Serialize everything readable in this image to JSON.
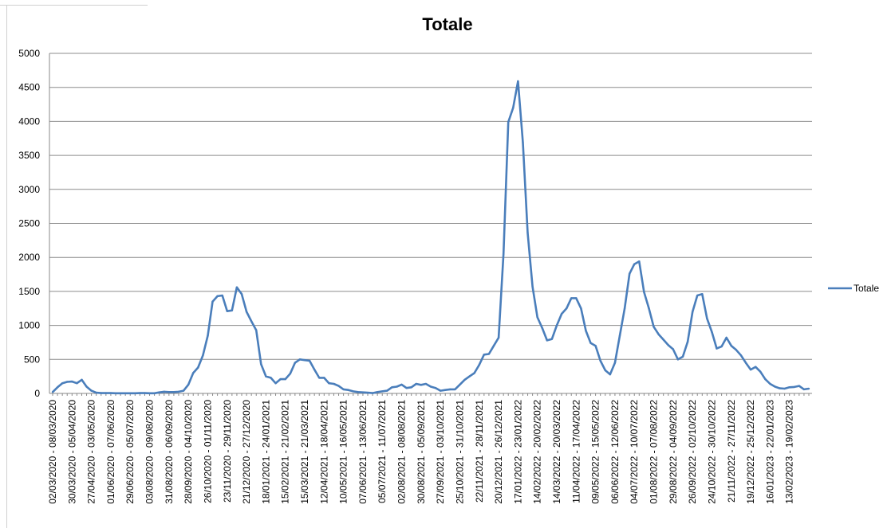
{
  "chart_data": {
    "type": "line",
    "title": "Totale",
    "xlabel": "",
    "ylabel": "",
    "ylim": [
      0,
      5000
    ],
    "yticks": [
      0,
      500,
      1000,
      1500,
      2000,
      2500,
      3000,
      3500,
      4000,
      4500,
      5000
    ],
    "grid": true,
    "legend": "right",
    "color": "#4a7ebb",
    "x_tick_labels": [
      "02/03/2020 - 08/03/2020",
      "30/03/2020 - 05/04/2020",
      "27/04/2020 - 03/05/2020",
      "01/06/2020 - 07/06/2020",
      "29/06/2020 - 05/07/2020",
      "03/08/2020 - 09/08/2020",
      "31/08/2020 - 06/09/2020",
      "28/09/2020 - 04/10/2020",
      "26/10/2020 - 01/11/2020",
      "23/11/2020 - 29/11/2020",
      "21/12/2020 - 27/12/2020",
      "18/01/2021 - 24/01/2021",
      "15/02/2021 - 21/02/2021",
      "15/03/2021 - 21/03/2021",
      "12/04/2021 - 18/04/2021",
      "10/05/2021 - 16/05/2021",
      "07/06/2021 - 13/06/2021",
      "05/07/2021 - 11/07/2021",
      "02/08/2021 - 08/08/2021",
      "30/08/2021 - 05/09/2021",
      "27/09/2021 - 03/10/2021",
      "25/10/2021 - 31/10/2021",
      "22/11/2021 - 28/11/2021",
      "20/12/2021 - 26/12/2021",
      "17/01/2022 - 23/01/2022",
      "14/02/2022 - 20/02/2022",
      "14/03/2022 - 20/03/2022",
      "11/04/2022 - 17/04/2022",
      "09/05/2022 - 15/05/2022",
      "06/06/2022 - 12/06/2022",
      "04/07/2022 - 10/07/2022",
      "01/08/2022 - 07/08/2022",
      "29/08/2022 - 04/09/2022",
      "26/09/2022 - 02/10/2022",
      "24/10/2022 - 30/10/2022",
      "21/11/2022 - 27/11/2022",
      "19/12/2022 - 25/12/2022",
      "16/01/2023 - 22/01/2023",
      "13/02/2023 - 19/02/2023"
    ],
    "series": [
      {
        "name": "Totale",
        "values": [
          20,
          90,
          150,
          170,
          175,
          150,
          200,
          100,
          40,
          10,
          5,
          5,
          5,
          2,
          2,
          2,
          2,
          2,
          5,
          5,
          2,
          2,
          15,
          25,
          20,
          20,
          25,
          40,
          130,
          300,
          380,
          560,
          850,
          1350,
          1430,
          1440,
          1210,
          1220,
          1560,
          1460,
          1200,
          1060,
          930,
          430,
          250,
          230,
          150,
          210,
          210,
          290,
          450,
          500,
          490,
          480,
          350,
          230,
          230,
          150,
          140,
          110,
          60,
          50,
          30,
          20,
          15,
          10,
          5,
          20,
          30,
          40,
          90,
          100,
          130,
          80,
          90,
          140,
          125,
          140,
          100,
          80,
          40,
          50,
          60,
          60,
          130,
          200,
          250,
          300,
          420,
          570,
          580,
          700,
          820,
          2050,
          3990,
          4200,
          4590,
          3690,
          2360,
          1570,
          1120,
          960,
          780,
          800,
          1000,
          1170,
          1250,
          1400,
          1400,
          1250,
          920,
          740,
          700,
          480,
          340,
          280,
          450,
          850,
          1250,
          1760,
          1900,
          1940,
          1490,
          1250,
          980,
          870,
          790,
          710,
          650,
          500,
          540,
          760,
          1200,
          1440,
          1460,
          1100,
          900,
          660,
          690,
          820,
          700,
          640,
          560,
          450,
          350,
          390,
          320,
          210,
          140,
          100,
          75,
          70,
          90,
          95,
          110,
          60,
          70
        ]
      }
    ]
  }
}
